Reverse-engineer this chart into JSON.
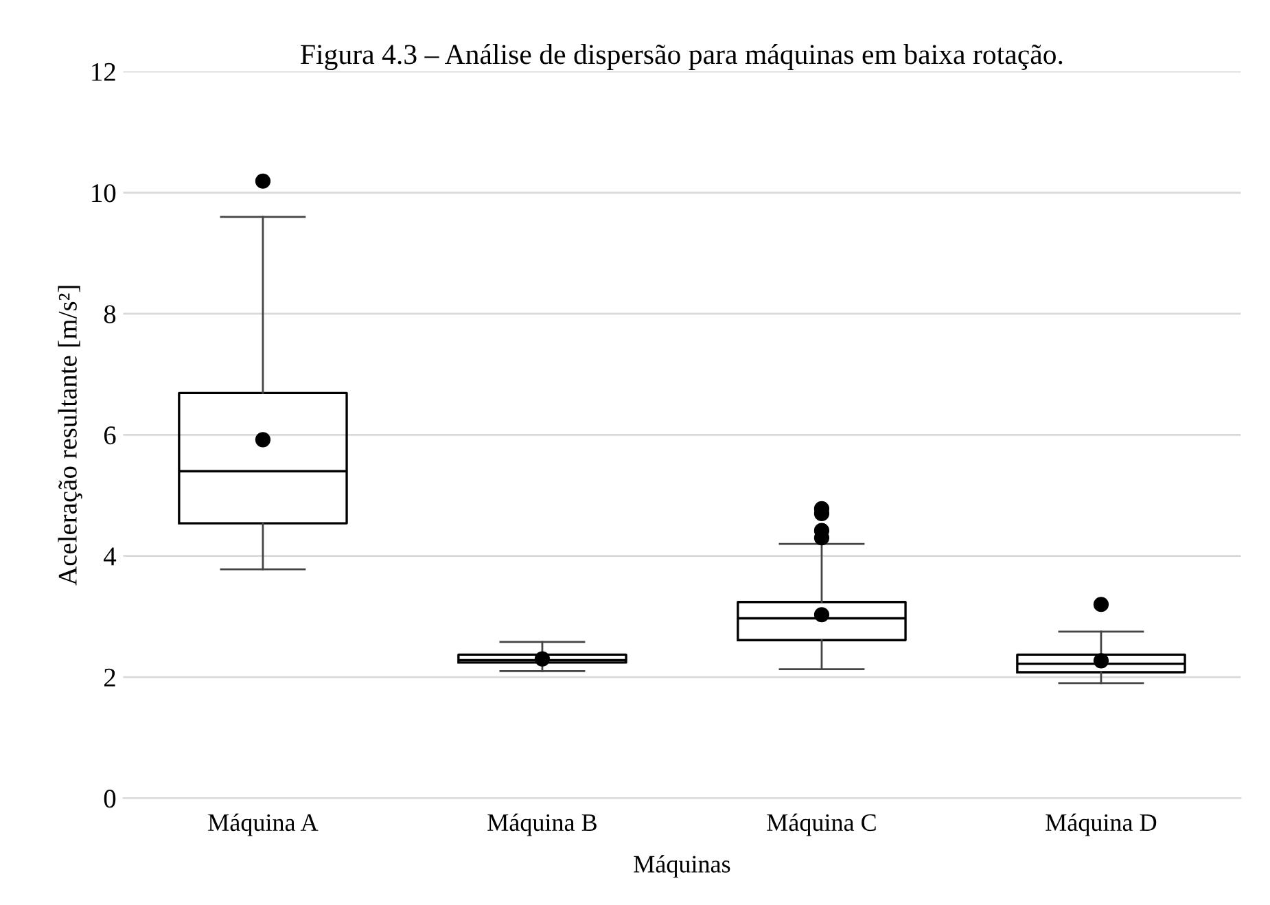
{
  "chart_data": {
    "type": "box",
    "title": "Figura 4.3 – Análise de dispersão para máquinas em baixa rotação.",
    "xlabel": "Máquinas",
    "ylabel": "Aceleração resultante [m/s²]",
    "categories": [
      "Máquina A",
      "Máquina B",
      "Máquina C",
      "Máquina D"
    ],
    "boxes": [
      {
        "low": 3.78,
        "q1": 4.54,
        "median": 5.4,
        "q3": 6.69,
        "high": 9.6,
        "mean": 5.92,
        "outliers": [
          10.19
        ]
      },
      {
        "low": 2.1,
        "q1": 2.24,
        "median": 2.28,
        "q3": 2.37,
        "high": 2.58,
        "mean": 2.3
      },
      {
        "low": 2.13,
        "q1": 2.61,
        "median": 2.97,
        "q3": 3.24,
        "high": 4.2,
        "mean": 3.03,
        "outliers": [
          4.3,
          4.42,
          4.7,
          4.78
        ]
      },
      {
        "low": 1.9,
        "q1": 2.08,
        "median": 2.22,
        "q3": 2.37,
        "high": 2.75,
        "mean": 2.27,
        "outliers": [
          3.2
        ]
      }
    ],
    "ylim": [
      0,
      12
    ],
    "yticks": [
      0,
      2,
      4,
      6,
      8,
      10,
      12
    ],
    "grid": "y"
  }
}
